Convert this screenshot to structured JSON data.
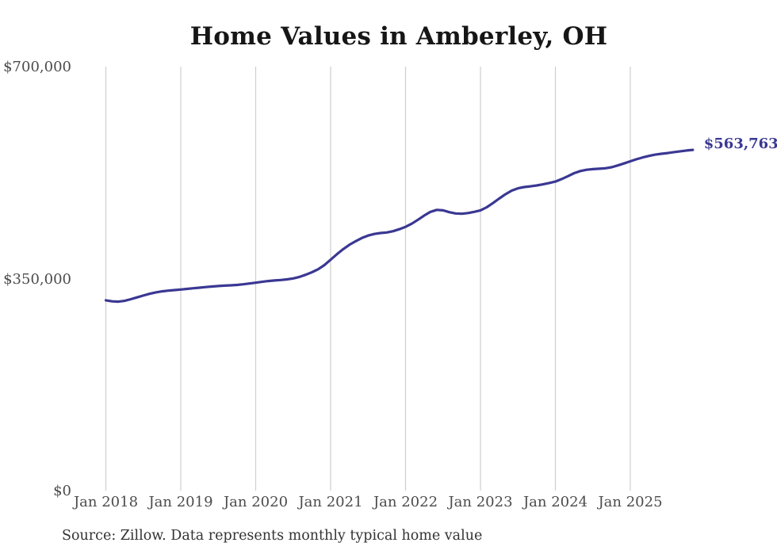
{
  "chart": {
    "title": "Home Values in Amberley, OH",
    "source_note": "Source: Zillow. Data represents monthly typical home value",
    "end_label": "$563,763",
    "colors": {
      "line": "#3a3893",
      "grid": "#cfcfcf",
      "tick_text": "#4c4c4c",
      "title_text": "#161616",
      "source_text": "#333333",
      "background": "#ffffff"
    }
  },
  "chart_data": {
    "type": "line",
    "title": "Home Values in Amberley, OH",
    "unit": "USD",
    "x_monthly_start": "Jan 2018",
    "x_monthly_end": "Nov 2025",
    "x_tick_labels": [
      "Jan 2018",
      "Jan 2019",
      "Jan 2020",
      "Jan 2021",
      "Jan 2022",
      "Jan 2023",
      "Jan 2024",
      "Jan 2025"
    ],
    "x_tick_month_indices": [
      0,
      12,
      24,
      36,
      48,
      60,
      72,
      84
    ],
    "y_ticks": [
      {
        "label": "$700,000",
        "value": 700000
      },
      {
        "label": "$350,000",
        "value": 350000
      },
      {
        "label": "$0",
        "value": 0
      }
    ],
    "ylim": [
      0,
      700000
    ],
    "grid": "vertical-only",
    "legend": "none",
    "final_value": 563763,
    "series": [
      {
        "name": "Typical home value",
        "values": [
          315500,
          313800,
          313200,
          314500,
          317300,
          320300,
          323300,
          326200,
          328600,
          330300,
          331400,
          332300,
          333300,
          334300,
          335300,
          336300,
          337300,
          338200,
          339000,
          339600,
          340200,
          340900,
          341900,
          343200,
          344500,
          346000,
          347200,
          348200,
          349000,
          350000,
          351600,
          354100,
          357600,
          361800,
          366800,
          373600,
          382500,
          391500,
          399900,
          407000,
          413000,
          418300,
          422300,
          425000,
          426500,
          427500,
          429500,
          432800,
          436800,
          442000,
          448500,
          455500,
          461500,
          464800,
          464000,
          461000,
          458800,
          458300,
          459500,
          461500,
          464000,
          469000,
          476000,
          483500,
          490500,
          496500,
          500400,
          502400,
          503600,
          505000,
          506900,
          509100,
          511500,
          515600,
          520400,
          525300,
          528900,
          531000,
          532000,
          532600,
          533500,
          535200,
          538100,
          541400,
          544900,
          548300,
          551400,
          553900,
          555900,
          557400,
          558600,
          560100,
          561500,
          562700,
          563763
        ]
      }
    ]
  }
}
